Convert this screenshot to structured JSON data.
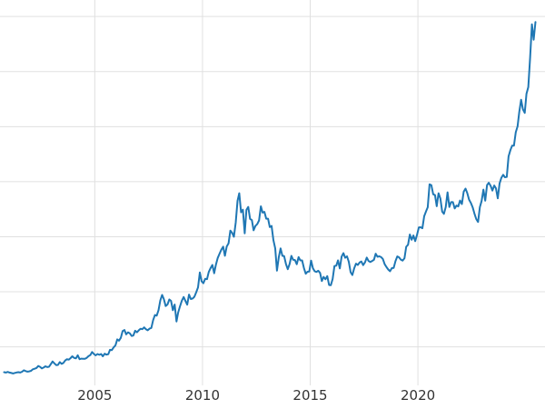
{
  "chart_data": {
    "type": "line",
    "title": "",
    "xlabel": "",
    "ylabel": "",
    "legend": "none",
    "background_color": "#ffffff",
    "line_color": "#1f77b4",
    "line_width": 2,
    "grid": true,
    "grid_color": "#e0e0e0",
    "xlim": [
      2000.6,
      2025.9
    ],
    "ylim": [
      150,
      3650
    ],
    "y_gridlines": [
      500,
      1000,
      1500,
      2000,
      2500,
      3000,
      3500
    ],
    "x_ticks": [
      {
        "value": 2005,
        "label": "2005"
      },
      {
        "value": 2010,
        "label": "2010"
      },
      {
        "value": 2015,
        "label": "2015"
      },
      {
        "value": 2020,
        "label": "2020"
      }
    ],
    "x": {
      "start": 2000.7917,
      "step": 0.0833333
    },
    "values": [
      270,
      266,
      272,
      266,
      262,
      258,
      263,
      267,
      270,
      266,
      274,
      287,
      280,
      275,
      277,
      282,
      296,
      301,
      308,
      326,
      318,
      304,
      312,
      323,
      316,
      319,
      342,
      367,
      350,
      334,
      336,
      361,
      346,
      354,
      375,
      388,
      384,
      398,
      414,
      399,
      395,
      423,
      388,
      393,
      392,
      391,
      400,
      415,
      425,
      453,
      435,
      422,
      435,
      427,
      435,
      414,
      437,
      429,
      433,
      473,
      470,
      495,
      513,
      568,
      556,
      582,
      644,
      653,
      613,
      632,
      623,
      599,
      603,
      646,
      632,
      650,
      664,
      661,
      677,
      659,
      650,
      665,
      672,
      743,
      789,
      783,
      833,
      923,
      971,
      933,
      871,
      885,
      930,
      918,
      833,
      884,
      730,
      814,
      869,
      919,
      952,
      916,
      883,
      975,
      934,
      939,
      955,
      995,
      1040,
      1175,
      1096,
      1078,
      1118,
      1115,
      1179,
      1215,
      1244,
      1169,
      1246,
      1307,
      1346,
      1383,
      1410,
      1327,
      1411,
      1439,
      1556,
      1536,
      1500,
      1628,
      1826,
      1895,
      1722,
      1746,
      1531,
      1744,
      1770,
      1662,
      1651,
      1558,
      1598,
      1614,
      1648,
      1776,
      1719,
      1726,
      1664,
      1664,
      1588,
      1598,
      1469,
      1394,
      1192,
      1313,
      1394,
      1326,
      1324,
      1253,
      1205,
      1251,
      1326,
      1291,
      1288,
      1250,
      1315,
      1285,
      1285,
      1216,
      1164,
      1182,
      1184,
      1283,
      1214,
      1187,
      1180,
      1191,
      1171,
      1098,
      1135,
      1114,
      1142,
      1061,
      1060,
      1116,
      1234,
      1237,
      1285,
      1212,
      1320,
      1351,
      1309,
      1322,
      1272,
      1178,
      1152,
      1212,
      1255,
      1244,
      1266,
      1275,
      1242,
      1267,
      1311,
      1280,
      1271,
      1280,
      1291,
      1345,
      1318,
      1322,
      1315,
      1298,
      1250,
      1224,
      1202,
      1187,
      1215,
      1217,
      1279,
      1321,
      1313,
      1292,
      1283,
      1305,
      1409,
      1427,
      1520,
      1472,
      1511,
      1460,
      1517,
      1584,
      1586,
      1577,
      1686,
      1730,
      1768,
      1976,
      1968,
      1886,
      1878,
      1777,
      1895,
      1848,
      1728,
      1708,
      1769,
      1903,
      1770,
      1814,
      1814,
      1757,
      1783,
      1775,
      1829,
      1797,
      1909,
      1937,
      1897,
      1837,
      1807,
      1766,
      1711,
      1661,
      1634,
      1769,
      1824,
      1928,
      1827,
      1969,
      1990,
      1963,
      1919,
      1965,
      1940,
      1849,
      1984,
      2036,
      2063,
      2040,
      2044,
      2230,
      2286,
      2327,
      2327,
      2448,
      2503,
      2635,
      2744,
      2657,
      2625,
      2798,
      2858,
      3124,
      3430,
      3289,
      3450
    ]
  }
}
